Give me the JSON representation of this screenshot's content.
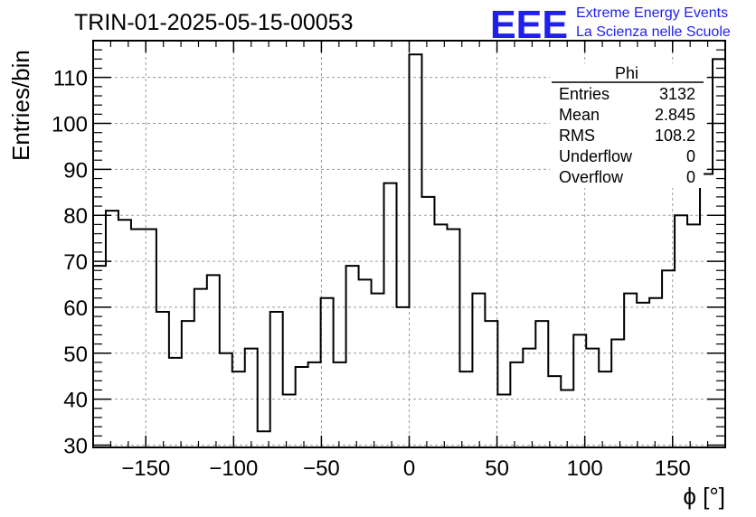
{
  "run_title": "TRIN-01-2025-05-15-00053",
  "logo": {
    "mark": "EEE",
    "line1": "Extreme Energy Events",
    "line2": "La Scienza nelle Scuole",
    "color": "#1f1ff0"
  },
  "stats": {
    "name": "Phi",
    "rows": [
      {
        "label": "Entries",
        "value": "3132"
      },
      {
        "label": "Mean",
        "value": "2.845"
      },
      {
        "label": "RMS",
        "value": "108.2"
      },
      {
        "label": "Underflow",
        "value": "0"
      },
      {
        "label": "Overflow",
        "value": "0"
      }
    ]
  },
  "chart_data": {
    "type": "histogram",
    "title": "TRIN-01-2025-05-15-00053",
    "xlabel": "ϕ [°]",
    "ylabel": "Entries/bin",
    "xlim": [
      -180,
      180
    ],
    "ylim": [
      29.5,
      118
    ],
    "bin_width": 7.2,
    "values": [
      69,
      81,
      79,
      77,
      77,
      59,
      49,
      57,
      64,
      67,
      50,
      46,
      51,
      33,
      59,
      41,
      47,
      48,
      62,
      48,
      69,
      66,
      63,
      87,
      60,
      115,
      84,
      78,
      77,
      46,
      63,
      57,
      41,
      48,
      51,
      57,
      45,
      42,
      54,
      51,
      46,
      53,
      63,
      61,
      62,
      68,
      80,
      78,
      89,
      114
    ],
    "x_ticks": [
      -150,
      -100,
      -50,
      0,
      50,
      100,
      150
    ],
    "x_tick_labels": [
      "−150",
      "−100",
      "−50",
      "0",
      "50",
      "100",
      "150"
    ],
    "y_ticks": [
      30,
      40,
      50,
      60,
      70,
      80,
      90,
      100,
      110
    ],
    "y_tick_labels": [
      "30",
      "40",
      "50",
      "60",
      "70",
      "80",
      "90",
      "100",
      "110"
    ],
    "grid": true
  }
}
